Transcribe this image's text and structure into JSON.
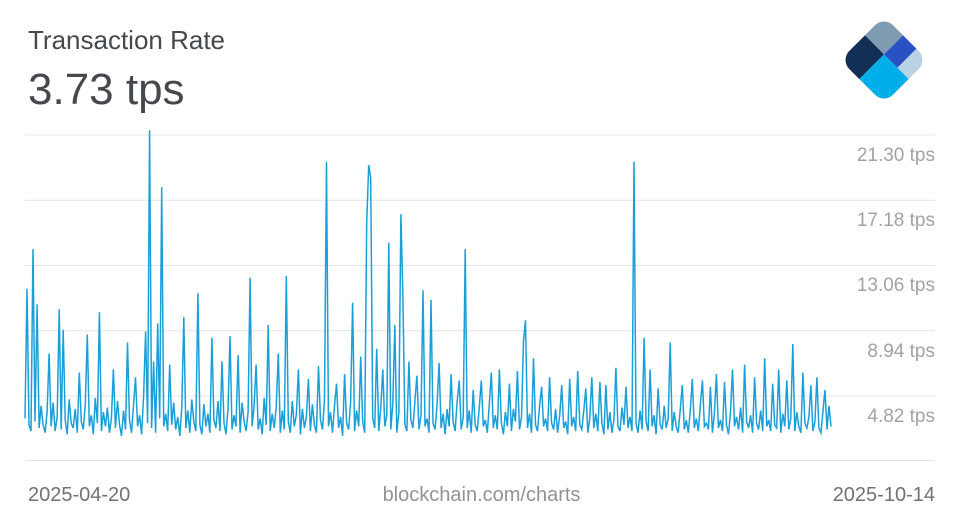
{
  "header": {
    "title": "Transaction Rate",
    "value": "3.73 tps"
  },
  "logo": {
    "name": "blockchain-com-logo",
    "colors": {
      "gray": "#7f9bb1",
      "royal": "#2a51c4",
      "light": "#b9d3e4",
      "navy": "#132f56",
      "cyan": "#00aee9"
    }
  },
  "footer": {
    "left_date": "2025-04-20",
    "center_text": "blockchain.com/charts",
    "right_date": "2025-10-14"
  },
  "chart_data": {
    "type": "line",
    "title": "Transaction Rate",
    "current_value": "3.73 tps",
    "unit": "tps",
    "line_color": "#1a9fd9",
    "grid_color": "#e3e4e5",
    "legend": "none",
    "grid": "horizontal-only",
    "x_axis": {
      "start": "2025-04-20",
      "end": "2025-10-14"
    },
    "ylim": [
      0,
      22.5
    ],
    "y_ticks": [
      {
        "value": 21.3,
        "label": "21.30 tps"
      },
      {
        "value": 17.18,
        "label": "17.18 tps"
      },
      {
        "value": 13.06,
        "label": "13.06 tps"
      },
      {
        "value": 8.94,
        "label": "8.94 tps"
      },
      {
        "value": 4.82,
        "label": "4.82 tps"
      }
    ],
    "values": [
      3.4,
      11.6,
      3.0,
      2.6,
      14.1,
      3.2,
      10.6,
      2.8,
      4.2,
      3.0,
      2.5,
      3.8,
      7.5,
      2.9,
      4.4,
      2.6,
      3.5,
      10.3,
      2.7,
      9.0,
      3.3,
      2.4,
      4.6,
      3.1,
      2.8,
      4.0,
      2.5,
      6.3,
      3.2,
      2.7,
      4.3,
      8.7,
      2.9,
      3.6,
      2.4,
      4.7,
      3.1,
      10.1,
      2.6,
      3.8,
      2.9,
      4.1,
      2.5,
      3.4,
      6.5,
      2.8,
      4.5,
      3.0,
      2.3,
      3.9,
      2.7,
      8.2,
      3.3,
      2.5,
      4.2,
      6.0,
      2.9,
      3.6,
      2.4,
      4.8,
      8.9,
      3.1,
      21.6,
      2.8,
      7.0,
      2.5,
      9.4,
      3.4,
      18.0,
      2.9,
      3.7,
      2.6,
      6.8,
      3.0,
      4.4,
      2.7,
      3.5,
      2.3,
      4.1,
      9.8,
      2.8,
      3.9,
      2.5,
      4.6,
      3.2,
      2.6,
      11.3,
      3.0,
      2.4,
      4.3,
      2.9,
      3.7,
      2.5,
      8.5,
      3.3,
      2.8,
      4.5,
      2.6,
      7.0,
      3.1,
      2.4,
      4.0,
      8.6,
      2.7,
      3.6,
      2.9,
      7.4,
      2.5,
      4.4,
      3.2,
      2.6,
      3.8,
      12.3,
      2.9,
      4.2,
      6.8,
      2.7,
      3.4,
      2.4,
      4.7,
      3.0,
      9.3,
      2.6,
      3.7,
      2.8,
      4.1,
      7.5,
      2.5,
      3.9,
      2.7,
      12.4,
      3.2,
      2.5,
      4.5,
      2.9,
      3.6,
      6.5,
      2.4,
      4.0,
      2.8,
      3.5,
      5.9,
      2.6,
      4.3,
      3.0,
      2.5,
      6.7,
      3.3,
      2.7,
      4.6,
      19.6,
      2.9,
      3.8,
      2.5,
      4.2,
      5.6,
      2.8,
      3.5,
      2.3,
      6.2,
      3.1,
      2.7,
      4.4,
      10.7,
      2.6,
      3.9,
      2.9,
      7.3,
      3.2,
      2.5,
      15.7,
      19.4,
      18.6,
      3.4,
      2.8,
      7.8,
      2.6,
      4.1,
      6.5,
      2.9,
      3.6,
      14.5,
      2.7,
      4.3,
      9.3,
      2.5,
      3.8,
      16.3,
      11.1,
      3.0,
      2.6,
      7.0,
      3.3,
      2.8,
      4.5,
      6.1,
      2.7,
      3.6,
      11.5,
      2.9,
      3.4,
      2.5,
      10.9,
      3.1,
      2.7,
      4.2,
      6.9,
      2.8,
      3.7,
      2.4,
      4.0,
      2.9,
      6.2,
      3.2,
      2.6,
      4.4,
      5.8,
      2.7,
      3.5,
      14.1,
      2.8,
      3.9,
      2.5,
      5.2,
      3.0,
      2.6,
      4.1,
      5.8,
      2.9,
      3.3,
      2.5,
      4.3,
      6.3,
      2.8,
      3.6,
      2.7,
      6.5,
      3.1,
      2.4,
      3.8,
      2.9,
      5.6,
      2.6,
      4.0,
      3.2,
      6.4,
      2.7,
      3.5,
      8.3,
      9.6,
      2.8,
      3.7,
      2.5,
      7.2,
      3.0,
      2.6,
      4.2,
      5.4,
      2.9,
      3.4,
      2.6,
      6.0,
      3.1,
      2.7,
      4.0,
      2.5,
      3.6,
      5.5,
      2.8,
      3.2,
      2.4,
      5.9,
      2.9,
      3.5,
      2.6,
      6.4,
      3.0,
      2.7,
      3.9,
      5.3,
      2.5,
      3.4,
      6.0,
      2.8,
      3.7,
      2.6,
      5.7,
      3.1,
      2.4,
      5.5,
      2.7,
      3.8,
      2.5,
      3.3,
      6.6,
      2.9,
      2.6,
      4.1,
      3.0,
      5.4,
      2.8,
      3.5,
      2.6,
      19.6,
      3.1,
      2.5,
      3.9,
      2.7,
      8.5,
      3.2,
      2.6,
      6.5,
      2.9,
      3.6,
      2.4,
      5.3,
      3.0,
      2.7,
      4.2,
      2.8,
      3.4,
      8.2,
      2.6,
      3.8,
      2.9,
      2.5,
      4.0,
      5.5,
      2.7,
      3.3,
      2.5,
      3.9,
      5.9,
      2.8,
      3.4,
      2.6,
      4.3,
      5.8,
      2.9,
      3.1,
      2.7,
      5.4,
      2.5,
      3.7,
      6.2,
      2.8,
      3.3,
      2.6,
      5.7,
      3.0,
      2.4,
      3.8,
      6.5,
      2.9,
      3.5,
      2.7,
      4.1,
      2.5,
      6.8,
      3.2,
      2.8,
      3.6,
      2.5,
      6.0,
      3.1,
      2.7,
      3.9,
      2.6,
      7.2,
      2.9,
      3.3,
      2.6,
      5.6,
      3.0,
      2.8,
      6.5,
      2.5,
      3.7,
      2.9,
      5.8,
      2.7,
      3.4,
      8.1,
      2.6,
      3.8,
      2.9,
      2.5,
      6.3,
      3.1,
      2.8,
      3.5,
      5.5,
      2.6,
      3.2,
      6.0,
      2.8,
      2.5,
      3.9,
      5.2,
      2.7,
      4.2,
      2.9
    ]
  }
}
